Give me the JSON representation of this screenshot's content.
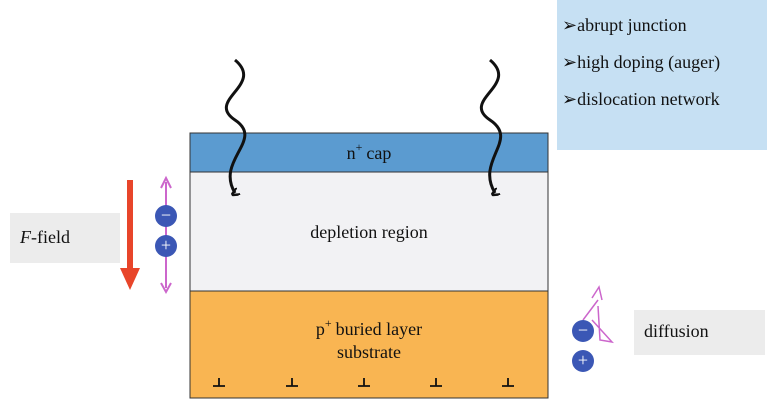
{
  "layers": {
    "cap": {
      "letter": "n",
      "sup": "+",
      "text": "cap"
    },
    "depletion": {
      "text": "depletion region"
    },
    "buried": {
      "letter": "p",
      "sup": "+",
      "line1": "buried layer",
      "line2": "substrate"
    }
  },
  "field": {
    "symbol": "F",
    "text": "-field"
  },
  "charges": {
    "minus": "−",
    "plus": "+"
  },
  "diffusion": {
    "text": "diffusion"
  },
  "notes": {
    "marker": "➢",
    "items": [
      "abrupt junction",
      "high doping (auger)",
      "dislocation network"
    ]
  }
}
